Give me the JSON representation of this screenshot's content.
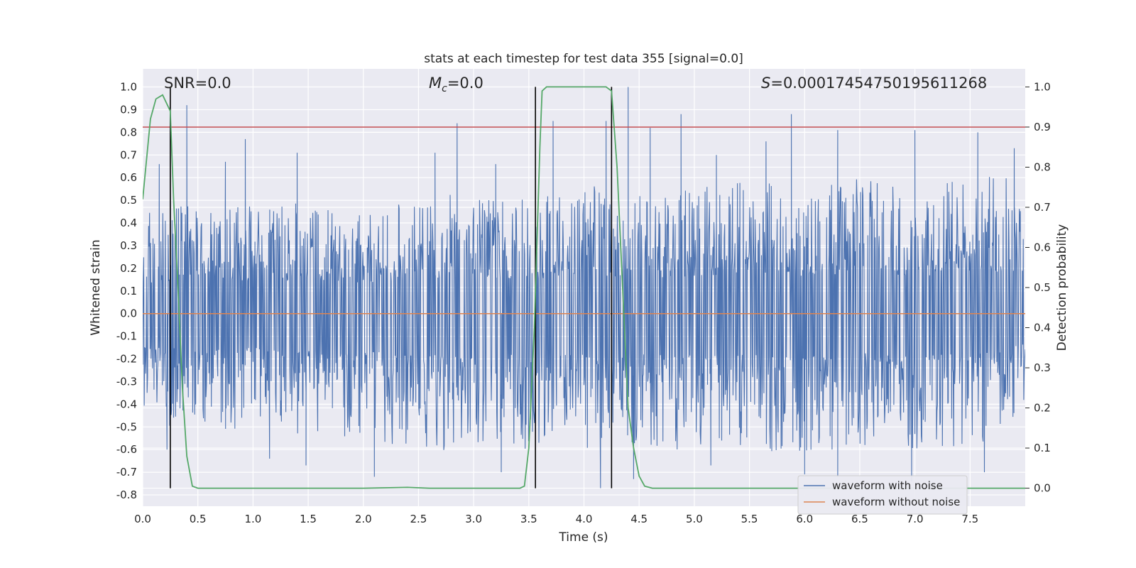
{
  "chart_data": {
    "type": "line",
    "title": "stats at each timestep for test data 355 [signal=0.0]",
    "xlabel": "Time (s)",
    "ylabel_left": "Whitened strain",
    "ylabel_right": "Detection probability",
    "xlim": [
      0.0,
      8.0
    ],
    "ylim_left": [
      -0.85,
      1.08
    ],
    "ylim_right": [
      -0.045,
      1.045
    ],
    "x_ticks": [
      "0.0",
      "0.5",
      "1.0",
      "1.5",
      "2.0",
      "2.5",
      "3.0",
      "3.5",
      "4.0",
      "4.5",
      "5.0",
      "5.5",
      "6.0",
      "6.5",
      "7.0",
      "7.5"
    ],
    "y_left_ticks": [
      "1.0",
      "0.9",
      "0.8",
      "0.7",
      "0.6",
      "0.5",
      "0.4",
      "0.3",
      "0.2",
      "0.1",
      "0.0",
      "-0.1",
      "-0.2",
      "-0.3",
      "-0.4",
      "-0.5",
      "-0.6",
      "-0.7",
      "-0.8"
    ],
    "y_right_ticks": [
      "1.0",
      "0.9",
      "0.8",
      "0.7",
      "0.6",
      "0.5",
      "0.4",
      "0.3",
      "0.2",
      "0.1",
      "0.0"
    ],
    "grid": true,
    "legend_position": "lower right",
    "annotations": {
      "snr": "SNR=0.0",
      "mc_symbol": "M",
      "mc_sub": "c",
      "mc_value": "=0.0",
      "s_symbol": "S",
      "s_value": "=0.00017454750195611268"
    },
    "series": [
      {
        "name": "waveform with noise",
        "axis": "left",
        "color": "#4c72b0",
        "style": "dense noise envelope",
        "envelope": {
          "x": [
            0.0,
            0.5,
            1.0,
            1.5,
            2.0,
            2.5,
            3.0,
            3.5,
            4.0,
            4.5,
            5.0,
            5.5,
            6.0,
            6.5,
            7.0,
            7.5,
            8.0
          ],
          "upper": [
            0.45,
            0.5,
            0.48,
            0.5,
            0.45,
            0.5,
            0.55,
            0.5,
            0.58,
            0.52,
            0.55,
            0.6,
            0.55,
            0.6,
            0.55,
            0.6,
            0.62
          ],
          "lower": [
            -0.45,
            -0.55,
            -0.5,
            -0.55,
            -0.55,
            -0.6,
            -0.62,
            -0.6,
            -0.6,
            -0.6,
            -0.6,
            -0.6,
            -0.62,
            -0.58,
            -0.6,
            -0.6,
            -0.45
          ]
        },
        "peaks": [
          {
            "x": 0.15,
            "y": 0.66
          },
          {
            "x": 0.25,
            "y": 0.86
          },
          {
            "x": 0.4,
            "y": 0.92
          },
          {
            "x": 0.75,
            "y": 0.67
          },
          {
            "x": 0.93,
            "y": 0.77
          },
          {
            "x": 1.4,
            "y": 0.71
          },
          {
            "x": 2.85,
            "y": 0.84
          },
          {
            "x": 2.65,
            "y": 0.71
          },
          {
            "x": 3.2,
            "y": 0.66
          },
          {
            "x": 3.72,
            "y": 0.85
          },
          {
            "x": 4.2,
            "y": 0.85
          },
          {
            "x": 4.4,
            "y": 1.0
          },
          {
            "x": 4.6,
            "y": 0.82
          },
          {
            "x": 4.88,
            "y": 0.88
          },
          {
            "x": 5.2,
            "y": 0.7
          },
          {
            "x": 5.65,
            "y": 0.76
          },
          {
            "x": 5.88,
            "y": 0.88
          },
          {
            "x": 6.3,
            "y": 0.81
          },
          {
            "x": 7.0,
            "y": 0.81
          },
          {
            "x": 7.57,
            "y": 0.8
          },
          {
            "x": 7.9,
            "y": 0.73
          },
          {
            "x": 0.22,
            "y": -0.6
          },
          {
            "x": 1.15,
            "y": -0.64
          },
          {
            "x": 1.48,
            "y": -0.67
          },
          {
            "x": 2.1,
            "y": -0.72
          },
          {
            "x": 3.25,
            "y": -0.7
          },
          {
            "x": 4.15,
            "y": -0.77
          },
          {
            "x": 4.45,
            "y": -0.73
          },
          {
            "x": 5.15,
            "y": -0.67
          },
          {
            "x": 6.0,
            "y": -0.71
          },
          {
            "x": 6.3,
            "y": -0.72
          },
          {
            "x": 6.97,
            "y": -0.74
          },
          {
            "x": 7.63,
            "y": -0.7
          }
        ]
      },
      {
        "name": "waveform without noise",
        "axis": "left",
        "color": "#dd8452",
        "x": [
          0.0,
          8.0
        ],
        "y": [
          0.0,
          0.0
        ]
      },
      {
        "name": "detection probability",
        "axis": "right",
        "color": "#55a868",
        "x": [
          0.0,
          0.07,
          0.12,
          0.18,
          0.25,
          0.28,
          0.32,
          0.36,
          0.4,
          0.45,
          0.5,
          1.0,
          2.0,
          2.4,
          2.6,
          3.0,
          3.42,
          3.46,
          3.5,
          3.55,
          3.6,
          3.62,
          3.66,
          3.7,
          3.8,
          4.0,
          4.2,
          4.25,
          4.3,
          4.35,
          4.4,
          4.45,
          4.5,
          4.55,
          4.62,
          4.7,
          5.0,
          8.0
        ],
        "y": [
          0.72,
          0.92,
          0.97,
          0.98,
          0.94,
          0.72,
          0.5,
          0.25,
          0.08,
          0.005,
          0.0,
          0.0,
          0.0,
          0.002,
          0.0,
          0.0,
          0.0,
          0.005,
          0.1,
          0.4,
          0.85,
          0.99,
          1.0,
          1.0,
          1.0,
          1.0,
          1.0,
          0.99,
          0.8,
          0.5,
          0.2,
          0.1,
          0.03,
          0.005,
          0.0,
          0.0,
          0.0,
          0.0
        ]
      }
    ],
    "reference_lines": {
      "threshold_right": 0.9,
      "threshold_color": "#c44e52",
      "vertical_x": [
        0.25,
        3.56,
        4.25
      ],
      "vertical_range_right": [
        0.0,
        1.0
      ],
      "vertical_color": "#000000"
    }
  }
}
